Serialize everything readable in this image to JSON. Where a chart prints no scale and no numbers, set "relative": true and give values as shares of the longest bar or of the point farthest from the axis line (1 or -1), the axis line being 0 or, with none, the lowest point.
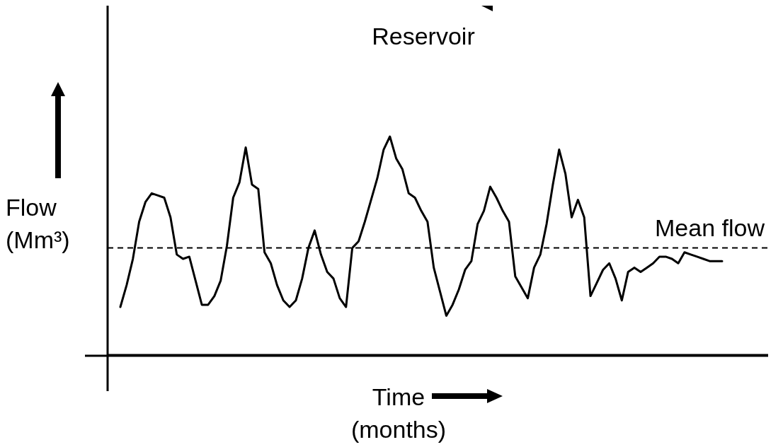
{
  "chart_data": {
    "type": "line",
    "relative": true,
    "xlabel": "Time (months)",
    "ylabel": "Flow (Mm³)",
    "annotations": [
      "Reservoir"
    ],
    "categories": [
      null,
      null,
      null,
      null,
      null,
      null,
      null,
      null,
      null,
      null,
      null,
      null,
      null,
      null,
      null,
      null,
      null,
      null,
      null,
      null,
      null,
      null,
      null,
      null,
      null,
      null,
      null,
      null,
      null,
      null,
      null,
      null,
      null,
      null,
      null,
      null,
      null,
      null,
      null,
      null,
      null,
      null,
      null,
      null,
      null,
      null,
      null,
      null,
      null,
      null,
      null,
      null,
      null,
      null,
      null,
      null,
      null,
      null,
      null,
      null,
      null,
      null,
      null,
      null,
      null,
      null,
      null,
      null,
      null,
      null,
      null,
      null,
      null,
      null,
      null,
      null,
      null,
      null,
      null,
      null,
      null,
      null,
      null,
      null,
      null,
      null,
      null,
      null,
      null,
      null,
      null,
      null,
      null,
      null,
      null,
      null,
      null
    ],
    "series": [
      {
        "color": "#000000",
        "values": [
          0.22,
          0.32,
          0.44,
          0.61,
          0.7,
          0.74,
          0.73,
          0.72,
          0.63,
          0.46,
          0.44,
          0.45,
          0.34,
          0.23,
          0.23,
          0.27,
          0.34,
          0.5,
          0.72,
          0.79,
          0.95,
          0.78,
          0.76,
          0.47,
          0.42,
          0.32,
          0.25,
          0.22,
          0.25,
          0.35,
          0.49,
          0.57,
          0.46,
          0.38,
          0.35,
          0.26,
          0.22,
          0.49,
          0.52,
          0.61,
          0.71,
          0.81,
          0.94,
          1,
          0.9,
          0.85,
          0.74,
          0.72,
          0.66,
          0.61,
          0.4,
          0.29,
          0.18,
          0.23,
          0.3,
          0.39,
          0.43,
          0.6,
          0.66,
          0.77,
          0.72,
          0.66,
          0.61,
          0.36,
          0.31,
          0.26,
          0.4,
          0.46,
          0.6,
          0.78,
          0.94,
          0.83,
          0.63,
          0.71,
          0.63,
          0.27,
          0.33,
          0.39,
          0.42,
          0.35,
          0.25,
          0.38,
          0.4,
          0.38,
          0.4,
          0.42,
          0.45,
          0.45,
          0.44,
          0.42,
          0.47,
          0.46,
          0.45,
          0.44,
          0.43,
          0.43,
          0.43
        ]
      }
    ],
    "ref_lines": [
      {
        "axis": "y",
        "value": 0.49,
        "label": "Mean flow",
        "line_style": "dashed",
        "color": "#000000"
      }
    ],
    "grid": false,
    "legend": false,
    "marker": "none",
    "line_style": "solid"
  }
}
